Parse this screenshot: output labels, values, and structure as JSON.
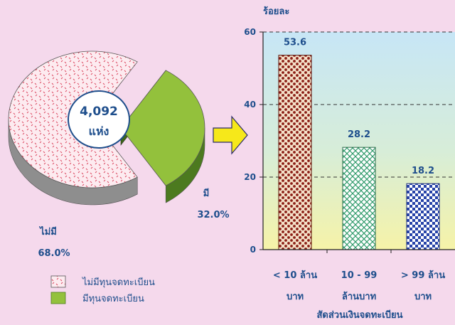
{
  "colors": {
    "background": "#f5d9ec",
    "label_blue": "#1e4e8c",
    "pie_without": "#fdebf0",
    "pie_with": "#93c13c",
    "bar1": "#8a1c14",
    "bar2": "#2f9a6a",
    "bar3": "#2743a8",
    "arrow": "#f6e81a"
  },
  "chart_data": [
    {
      "type": "pie",
      "center_label": "4,092",
      "center_unit": "แห่ง",
      "slices": [
        {
          "name": "ไม่มี",
          "value": 68.0,
          "value_label": "68.0%"
        },
        {
          "name": "มี",
          "value": 32.0,
          "value_label": "32.0%"
        }
      ],
      "legend": [
        {
          "label": "ไม่มีทุนจดทะเบียน",
          "icon": "dotted-pink-swatch"
        },
        {
          "label": "มีทุนจดทะเบียน",
          "icon": "green-swatch"
        }
      ],
      "legend_placement": "bottom"
    },
    {
      "type": "bar",
      "ylabel": "ร้อยละ",
      "xlabel": "สัดส่วนเงินจดทะเบียน",
      "ylim": [
        0,
        60
      ],
      "yticks": [
        0,
        20,
        40,
        60
      ],
      "grid": true,
      "categories": [
        {
          "line1": "< 10 ล้าน",
          "line2": "บาท"
        },
        {
          "line1": "10 - 99",
          "line2": "ล้านบาท"
        },
        {
          "line1": "> 99 ล้าน",
          "line2": "บาท"
        }
      ],
      "values": [
        53.6,
        28.2,
        18.2
      ],
      "value_labels": [
        "53.6",
        "28.2",
        "18.2"
      ]
    }
  ]
}
